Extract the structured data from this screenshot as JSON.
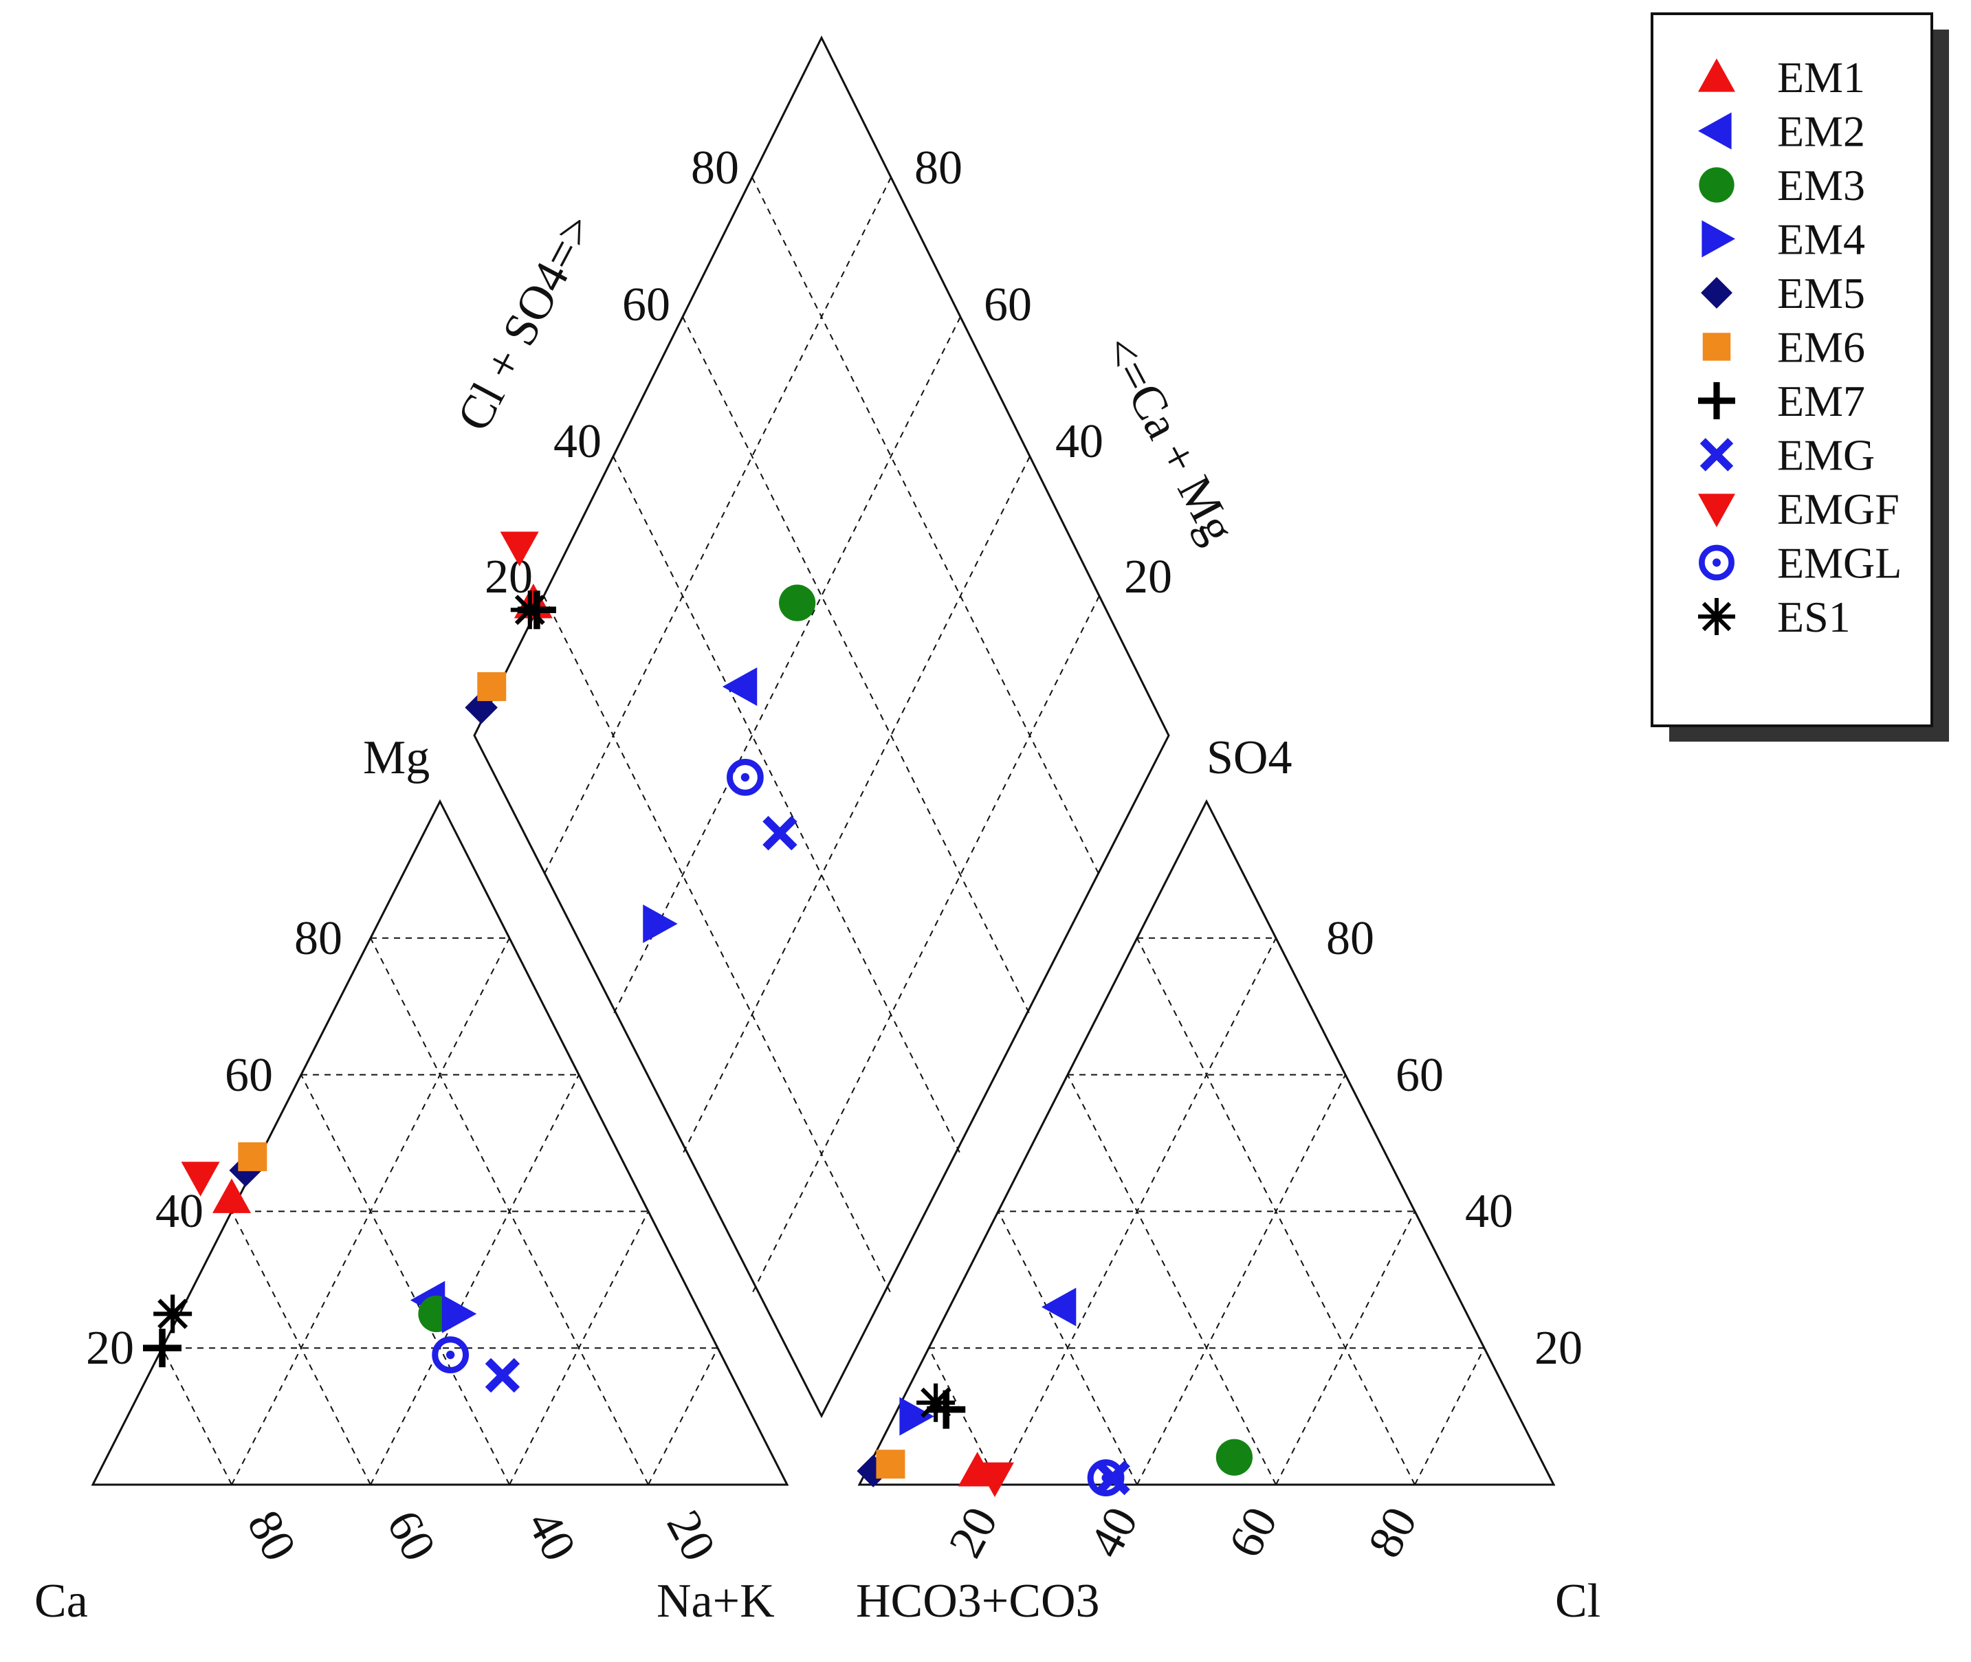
{
  "chart_data": {
    "type": "scatter",
    "subtype": "piper-trilinear",
    "title": "",
    "cation_triangle": {
      "corner_labels": {
        "left": "Ca",
        "right": "Na+K",
        "top": "Mg"
      },
      "left_ticks": [
        "20",
        "40",
        "60",
        "80"
      ],
      "bottom_ticks": [
        "80",
        "60",
        "40",
        "20"
      ]
    },
    "anion_triangle": {
      "corner_labels": {
        "left": "HCO3+CO3",
        "right": "Cl",
        "top": "SO4"
      },
      "right_ticks": [
        "20",
        "40",
        "60",
        "80"
      ],
      "bottom_ticks": [
        "20",
        "40",
        "60",
        "80"
      ]
    },
    "diamond": {
      "left_axis_label": "Cl + SO4=>",
      "right_axis_label": "<=Ca + Mg",
      "left_ticks": [
        "20",
        "40",
        "60",
        "80"
      ],
      "right_ticks": [
        "20",
        "40",
        "60",
        "80"
      ]
    },
    "legend_position": "top-right",
    "series": [
      {
        "name": "EM1",
        "marker": "triangle-up",
        "color": "#ee1111",
        "cation": {
          "ca": 59,
          "mg": 42,
          "na_k": -1
        },
        "anion": {
          "cl": 16,
          "so4": 2
        }
      },
      {
        "name": "EM2",
        "marker": "triangle-left",
        "color": "#1f1fe8",
        "cation": {
          "ca": 38,
          "mg": 27,
          "na_k": 35
        },
        "anion": {
          "cl": 16,
          "so4": 26
        }
      },
      {
        "name": "EM3",
        "marker": "circle",
        "color": "#138413",
        "cation": {
          "ca": 38,
          "mg": 25,
          "na_k": 37
        },
        "anion": {
          "cl": 52,
          "so4": 4
        }
      },
      {
        "name": "EM4",
        "marker": "triangle-right",
        "color": "#1f1fe8",
        "cation": {
          "ca": 35,
          "mg": 25,
          "na_k": 40
        },
        "anion": {
          "cl": 3,
          "so4": 10
        }
      },
      {
        "name": "EM5",
        "marker": "diamond",
        "color": "#0d0d7a",
        "cation": {
          "ca": 55,
          "mg": 46,
          "na_k": -1
        },
        "anion": {
          "cl": 1,
          "so4": 2
        }
      },
      {
        "name": "EM6",
        "marker": "square",
        "color": "#f08a1c",
        "cation": {
          "ca": 53,
          "mg": 48,
          "na_k": -1
        },
        "anion": {
          "cl": 3,
          "so4": 3
        }
      },
      {
        "name": "EM7",
        "marker": "plus",
        "color": "#000000",
        "cation": {
          "ca": 80,
          "mg": 20,
          "na_k": 0
        },
        "anion": {
          "cl": 7,
          "so4": 11
        }
      },
      {
        "name": "EMG",
        "marker": "x",
        "color": "#1f1fe8",
        "cation": {
          "ca": 33,
          "mg": 16,
          "na_k": 51
        },
        "anion": {
          "cl": 36,
          "so4": 1
        }
      },
      {
        "name": "EMGF",
        "marker": "triangle-down",
        "color": "#ee1111",
        "cation": {
          "ca": 62,
          "mg": 45,
          "na_k": -7
        },
        "anion": {
          "cl": 19,
          "so4": 1
        }
      },
      {
        "name": "EMGL",
        "marker": "target",
        "color": "#1f1fe8",
        "cation": {
          "ca": 39,
          "mg": 19,
          "na_k": 42
        },
        "anion": {
          "cl": 35,
          "so4": 1
        }
      },
      {
        "name": "ES1",
        "marker": "asterisk",
        "color": "#000000",
        "cation": {
          "ca": 76,
          "mg": 25,
          "na_k": -1
        },
        "anion": {
          "cl": 5,
          "so4": 12
        }
      }
    ]
  },
  "colors": {
    "frame": "#111111",
    "legend_shadow": "#333333"
  }
}
